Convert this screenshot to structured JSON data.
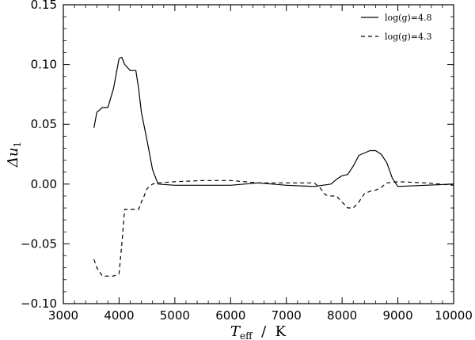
{
  "chart_data": {
    "type": "line",
    "xlabel": {
      "symbol": "T",
      "subscript": "eff",
      "unit": "  /  K"
    },
    "ylabel": {
      "symbol": "Δu",
      "subscript": "1"
    },
    "xlim": [
      3000,
      10000
    ],
    "ylim": [
      -0.1,
      0.15
    ],
    "x_ticks": [
      3000,
      4000,
      5000,
      6000,
      7000,
      8000,
      9000,
      10000
    ],
    "y_ticks": [
      -0.1,
      -0.05,
      0.0,
      0.05,
      0.1,
      0.15
    ],
    "x_tick_labels": [
      "3000",
      "4000",
      "5000",
      "6000",
      "7000",
      "8000",
      "9000",
      "10000"
    ],
    "y_tick_labels": [
      "−0.10",
      "−0.05",
      "0.00",
      "0.05",
      "0.10",
      "0.15"
    ],
    "grid": false,
    "legend_position": "top-right",
    "series": [
      {
        "name": "log(g)=4.8",
        "style": "solid",
        "color": "#000000",
        "x": [
          3550,
          3600,
          3700,
          3800,
          3900,
          4000,
          4050,
          4100,
          4200,
          4300,
          4350,
          4400,
          4500,
          4600,
          4700,
          5000,
          5500,
          6000,
          6500,
          7000,
          7500,
          7800,
          7900,
          8000,
          8100,
          8200,
          8300,
          8400,
          8500,
          8600,
          8700,
          8800,
          8900,
          9000,
          9500,
          10000
        ],
        "y": [
          0.047,
          0.06,
          0.064,
          0.064,
          0.08,
          0.105,
          0.106,
          0.1,
          0.095,
          0.095,
          0.08,
          0.06,
          0.037,
          0.012,
          0.0,
          -0.001,
          -0.001,
          -0.001,
          0.001,
          -0.001,
          -0.002,
          0.0,
          0.004,
          0.007,
          0.008,
          0.015,
          0.024,
          0.026,
          0.028,
          0.028,
          0.025,
          0.018,
          0.005,
          -0.002,
          -0.001,
          0.0
        ]
      },
      {
        "name": "log(g)=4.3",
        "style": "dashed",
        "color": "#000000",
        "x": [
          3550,
          3600,
          3700,
          3800,
          3900,
          4000,
          4050,
          4100,
          4200,
          4300,
          4350,
          4400,
          4450,
          4500,
          4600,
          4700,
          5000,
          5500,
          6000,
          6500,
          7000,
          7500,
          7600,
          7700,
          7800,
          7900,
          8000,
          8100,
          8200,
          8300,
          8400,
          8500,
          8600,
          8700,
          8800,
          9000,
          9500,
          10000
        ],
        "y": [
          -0.063,
          -0.07,
          -0.077,
          -0.077,
          -0.077,
          -0.075,
          -0.05,
          -0.021,
          -0.021,
          -0.021,
          -0.021,
          -0.015,
          -0.01,
          -0.004,
          0.0,
          0.001,
          0.002,
          0.003,
          0.003,
          0.001,
          0.001,
          0.001,
          -0.003,
          -0.009,
          -0.01,
          -0.01,
          -0.015,
          -0.02,
          -0.02,
          -0.015,
          -0.008,
          -0.006,
          -0.005,
          -0.003,
          0.001,
          0.002,
          0.001,
          -0.001
        ]
      }
    ]
  }
}
